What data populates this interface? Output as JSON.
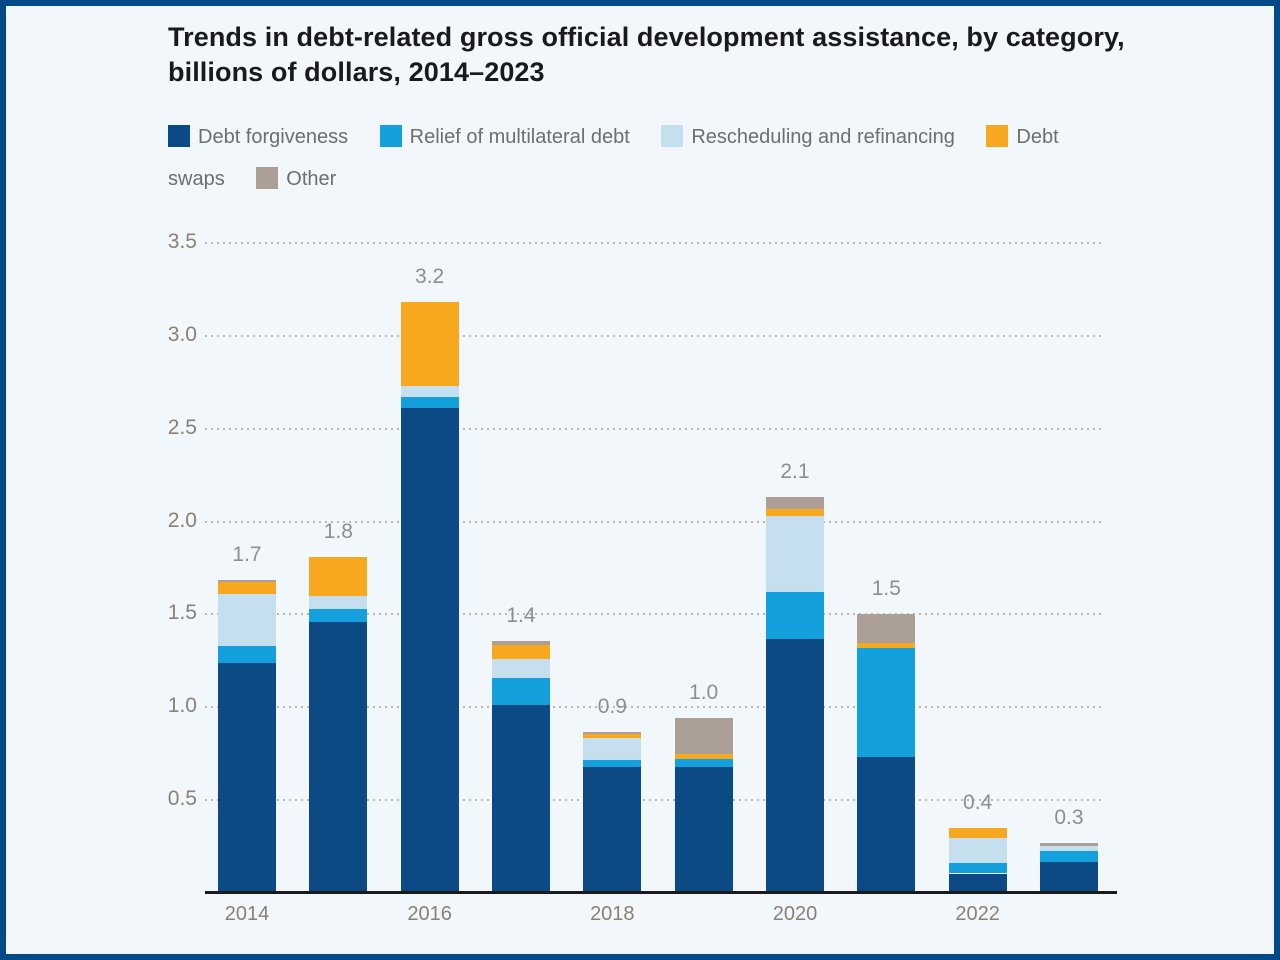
{
  "frame": {
    "border_color": "#004a87",
    "background_color": "#f2f7fb"
  },
  "title": "Trends in debt-related gross official development assistance, by category,\nbillions of dollars, 2014–2023",
  "legend": {
    "items": [
      {
        "label": "Debt forgiveness",
        "color": "#0b4a85"
      },
      {
        "label": "Relief of multilateral debt",
        "color": "#14a0dc"
      },
      {
        "label": "Rescheduling and refinancing",
        "color": "#c5dfee"
      },
      {
        "label": "Debt swaps",
        "color": "#f8a81e"
      },
      {
        "label": "Other",
        "color": "#aca096"
      }
    ]
  },
  "chart_data": {
    "type": "bar",
    "stacked": true,
    "title": "Trends in debt-related gross official development assistance, by category, billions of dollars, 2014–2023",
    "unit": "billions of dollars",
    "categories": [
      "2014",
      "2015",
      "2016",
      "2017",
      "2018",
      "2019",
      "2020",
      "2021",
      "2022",
      "2023"
    ],
    "series": [
      {
        "name": "Debt forgiveness",
        "color": "#0b4a85",
        "values": [
          1.24,
          1.46,
          2.61,
          1.01,
          0.68,
          0.68,
          1.37,
          0.73,
          0.105,
          0.165
        ]
      },
      {
        "name": "Relief of multilateral debt",
        "color": "#14a0dc",
        "values": [
          0.09,
          0.07,
          0.06,
          0.15,
          0.035,
          0.04,
          0.25,
          0.59,
          0.055,
          0.06
        ]
      },
      {
        "name": "Rescheduling and refinancing",
        "color": "#c5dfee",
        "values": [
          0.28,
          0.07,
          0.06,
          0.1,
          0.12,
          0.0,
          0.41,
          0.0,
          0.135,
          0.03
        ]
      },
      {
        "name": "Debt swaps",
        "color": "#f8a81e",
        "values": [
          0.065,
          0.21,
          0.45,
          0.075,
          0.02,
          0.03,
          0.04,
          0.025,
          0.055,
          0.0
        ]
      },
      {
        "name": "Other",
        "color": "#aca096",
        "values": [
          0.01,
          0.0,
          0.0,
          0.02,
          0.01,
          0.19,
          0.06,
          0.155,
          0.0,
          0.015
        ]
      }
    ],
    "totals_labels": [
      "1.7",
      "1.8",
      "3.2",
      "1.4",
      "0.9",
      "1.0",
      "2.1",
      "1.5",
      "0.4",
      "0.3"
    ],
    "y_ticks": [
      0.5,
      1.0,
      1.5,
      2.0,
      2.5,
      3.0,
      3.5
    ],
    "ylim": [
      0,
      3.5
    ],
    "x_tick_labels": [
      "2014",
      "2016",
      "2018",
      "2020",
      "2022"
    ],
    "x_tick_positions": [
      0,
      2,
      4,
      6,
      8
    ],
    "xlabel": "",
    "ylabel": "",
    "grid": "dotted horizontal",
    "legend_position": "top"
  }
}
